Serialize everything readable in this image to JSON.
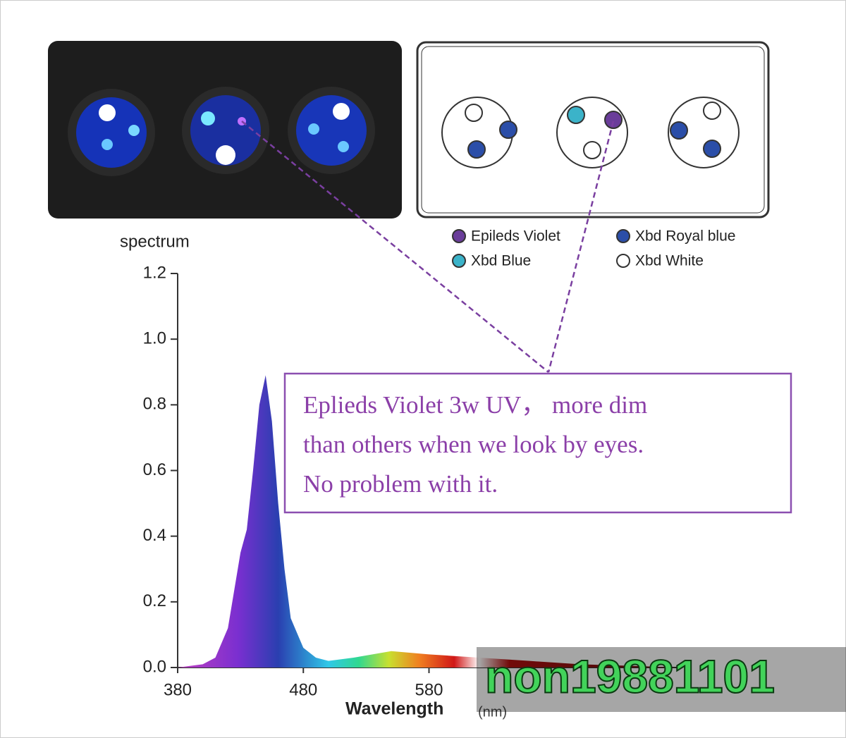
{
  "chart_data": {
    "type": "area",
    "y_label": "spectrum",
    "x_label": "Wavelength",
    "x_unit": "(nm)",
    "x": [
      380,
      400,
      410,
      420,
      430,
      435,
      440,
      445,
      450,
      455,
      460,
      465,
      470,
      480,
      490,
      500,
      520,
      550,
      580,
      620,
      660,
      700,
      780
    ],
    "values": [
      0.0,
      0.01,
      0.03,
      0.12,
      0.35,
      0.42,
      0.6,
      0.8,
      0.89,
      0.75,
      0.5,
      0.3,
      0.15,
      0.06,
      0.03,
      0.02,
      0.03,
      0.05,
      0.04,
      0.03,
      0.02,
      0.01,
      0.0
    ],
    "xlim": [
      380,
      780
    ],
    "xticks": [
      380,
      480,
      580
    ],
    "ylim": [
      0,
      1.2
    ],
    "yticks": [
      {
        "value": 0,
        "label": "0.0"
      },
      0.2,
      0.4,
      0.6,
      0.8,
      {
        "value": 1,
        "label": "1.0"
      },
      1.2
    ],
    "grid": false
  },
  "led_legend": [
    {
      "name": "Epileds Violet",
      "color": "#6a3d9a"
    },
    {
      "name": "Xbd Royal blue",
      "color": "#2b4ea8"
    },
    {
      "name": "Xbd Blue",
      "color": "#3bb3c9"
    },
    {
      "name": "Xbd White",
      "color": "#ffffff"
    }
  ],
  "annotation": {
    "lines": [
      "Eplieds Violet 3w UV，  more dim",
      "than others when we look by eyes.",
      "No problem with it."
    ]
  },
  "watermark": "non19881101"
}
